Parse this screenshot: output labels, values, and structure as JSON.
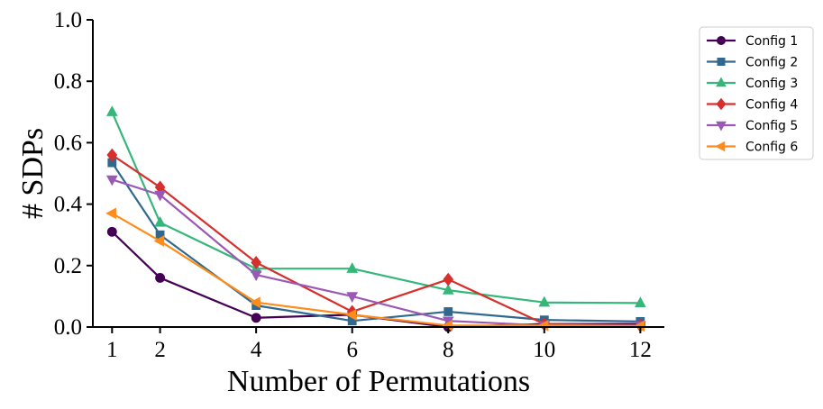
{
  "chart_data": {
    "type": "line",
    "title": "",
    "xlabel": "Number of Permutations",
    "ylabel": "# SDPs",
    "x": [
      1,
      2,
      4,
      6,
      8,
      10,
      12
    ],
    "xticks": [
      "1",
      "2",
      "4",
      "6",
      "8",
      "10",
      "12"
    ],
    "yticks": [
      "0.0",
      "0.2",
      "0.4",
      "0.6",
      "0.8",
      "1.0"
    ],
    "xlim": [
      0.6,
      12.5
    ],
    "ylim": [
      0,
      1.0
    ],
    "grid": false,
    "legend_position": "outside-top-right",
    "series": [
      {
        "name": "Config 1",
        "color": "#440154",
        "marker": "circle",
        "values": [
          0.31,
          0.16,
          0.03,
          0.04,
          0.0,
          0.01,
          0.01
        ]
      },
      {
        "name": "Config 2",
        "color": "#31688e",
        "marker": "square",
        "values": [
          0.535,
          0.3,
          0.07,
          0.02,
          0.05,
          0.023,
          0.018
        ]
      },
      {
        "name": "Config 3",
        "color": "#35b779",
        "marker": "triangle-up",
        "values": [
          0.7,
          0.34,
          0.19,
          0.19,
          0.12,
          0.08,
          0.078
        ]
      },
      {
        "name": "Config 4",
        "color": "#d62f2c",
        "marker": "diamond",
        "values": [
          0.56,
          0.455,
          0.21,
          0.05,
          0.155,
          0.01,
          0.005
        ]
      },
      {
        "name": "Config 5",
        "color": "#9b59b6",
        "marker": "triangle-down",
        "values": [
          0.48,
          0.43,
          0.17,
          0.1,
          0.02,
          0.005,
          0.005
        ]
      },
      {
        "name": "Config 6",
        "color": "#ff8c1a",
        "marker": "triangle-left",
        "values": [
          0.37,
          0.28,
          0.08,
          0.04,
          0.005,
          0.005,
          0.003
        ]
      }
    ]
  }
}
